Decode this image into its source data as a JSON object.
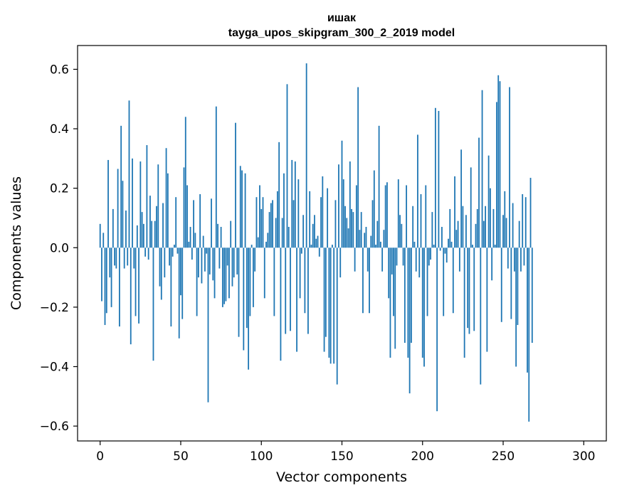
{
  "chart_data": {
    "type": "bar",
    "title": "ишак",
    "subtitle": "tayga_upos_skipgram_300_2_2019 model",
    "xlabel": "Vector components",
    "ylabel": "Components values",
    "xlim": [
      -14,
      314
    ],
    "ylim": [
      -0.65,
      0.68
    ],
    "xticks": [
      0,
      50,
      100,
      150,
      200,
      250,
      300
    ],
    "yticks": [
      -0.6,
      -0.4,
      -0.2,
      0.0,
      0.2,
      0.4,
      0.6
    ],
    "ytick_labels": [
      "−0.6",
      "−0.4",
      "−0.2",
      "0.0",
      "0.2",
      "0.4",
      "0.6"
    ],
    "color": "#1f77b4",
    "values": [
      0.08,
      -0.18,
      0.05,
      -0.26,
      -0.22,
      0.295,
      -0.1,
      -0.2,
      0.13,
      -0.06,
      -0.07,
      0.265,
      -0.265,
      0.41,
      0.225,
      -0.07,
      0.125,
      -0.06,
      0.495,
      -0.325,
      0.3,
      -0.07,
      -0.23,
      0.075,
      -0.255,
      0.29,
      0.12,
      0.08,
      -0.03,
      0.345,
      -0.04,
      0.175,
      0.09,
      -0.38,
      0.09,
      0.14,
      0.28,
      -0.13,
      -0.175,
      0.15,
      -0.1,
      0.335,
      0.25,
      -0.06,
      -0.265,
      -0.03,
      0.01,
      0.17,
      -0.02,
      -0.305,
      -0.16,
      -0.24,
      0.27,
      0.44,
      0.21,
      0.02,
      0.07,
      -0.04,
      0.16,
      0.05,
      -0.23,
      -0.1,
      0.18,
      -0.12,
      0.04,
      -0.08,
      -0.02,
      -0.52,
      -0.09,
      0.165,
      -0.11,
      -0.17,
      0.475,
      0.08,
      -0.07,
      0.07,
      -0.2,
      -0.19,
      -0.18,
      -0.06,
      -0.17,
      0.09,
      -0.13,
      -0.1,
      0.42,
      -0.09,
      -0.3,
      0.275,
      0.26,
      -0.345,
      0.25,
      -0.27,
      -0.41,
      -0.23,
      0.01,
      -0.2,
      -0.08,
      0.17,
      0.035,
      0.21,
      0.13,
      0.17,
      -0.17,
      0.02,
      0.05,
      0.12,
      0.15,
      0.16,
      -0.23,
      0.1,
      0.19,
      0.355,
      -0.38,
      0.1,
      0.25,
      -0.29,
      0.55,
      0.07,
      -0.28,
      0.295,
      0.16,
      0.29,
      -0.35,
      0.23,
      -0.17,
      -0.02,
      0.11,
      -0.22,
      0.62,
      -0.29,
      0.19,
      0.01,
      0.08,
      0.11,
      0.03,
      0.04,
      -0.03,
      0.17,
      0.24,
      -0.35,
      -0.3,
      0.2,
      -0.37,
      -0.39,
      0.01,
      -0.39,
      0.16,
      -0.46,
      0.28,
      -0.1,
      0.36,
      0.23,
      0.14,
      0.1,
      0.065,
      0.29,
      0.13,
      0.12,
      -0.08,
      0.21,
      0.54,
      0.06,
      0.12,
      -0.22,
      0.05,
      0.07,
      -0.08,
      -0.22,
      0.04,
      0.16,
      0.26,
      0.01,
      0.09,
      0.41,
      0.02,
      -0.08,
      0.06,
      0.21,
      0.22,
      -0.17,
      -0.37,
      -0.09,
      -0.23,
      -0.34,
      -0.06,
      0.23,
      0.11,
      0.08,
      -0.06,
      -0.32,
      0.21,
      -0.37,
      -0.49,
      -0.32,
      0.14,
      0.02,
      -0.08,
      0.38,
      -0.1,
      0.18,
      -0.37,
      -0.4,
      0.21,
      -0.23,
      -0.06,
      -0.04,
      0.12,
      0.01,
      0.47,
      -0.55,
      0.46,
      -0.01,
      0.07,
      -0.23,
      -0.02,
      -0.05,
      0.03,
      0.13,
      0.02,
      -0.22,
      0.24,
      0.06,
      0.09,
      -0.08,
      0.33,
      0.14,
      -0.37,
      0.11,
      -0.27,
      -0.29,
      0.27,
      0.01,
      -0.28,
      0.08,
      0.13,
      0.37,
      -0.46,
      0.53,
      0.09,
      0.14,
      -0.35,
      0.31,
      0.2,
      -0.11,
      0.13,
      0.01,
      0.49,
      0.58,
      0.56,
      -0.25,
      0.11,
      0.19,
      0.1,
      -0.07,
      0.54,
      -0.24,
      0.15,
      -0.08,
      -0.4,
      -0.26,
      0.09,
      -0.08,
      0.18,
      -0.06,
      0.17,
      -0.42,
      -0.585,
      0.235,
      -0.32
    ]
  }
}
